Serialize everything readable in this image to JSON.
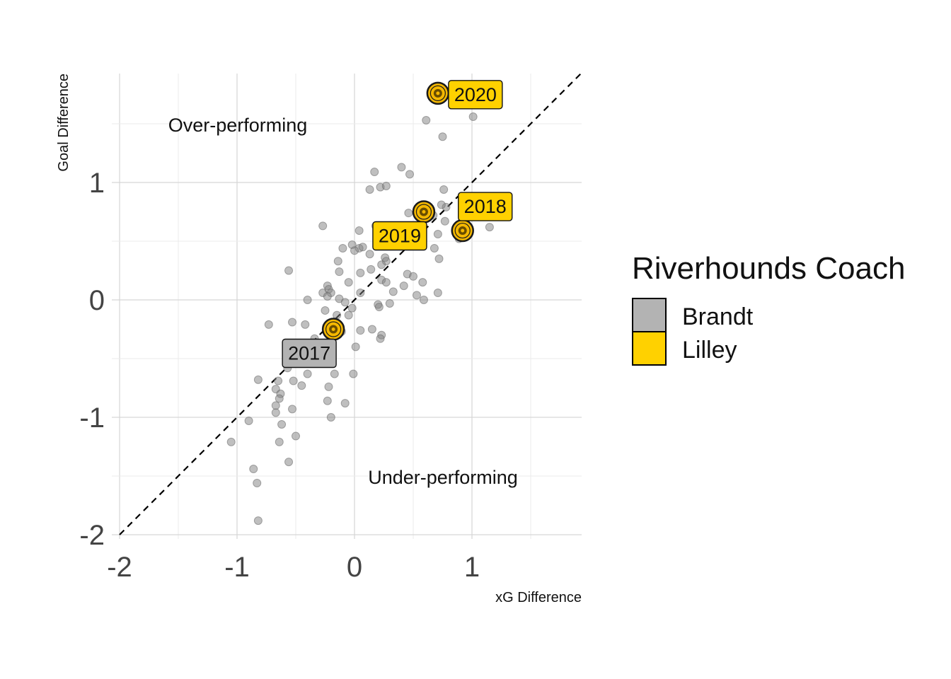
{
  "chart_data": {
    "type": "scatter",
    "xlabel": "xG Difference",
    "ylabel": "Goal Difference",
    "xlim": [
      -2,
      1.9
    ],
    "ylim": [
      -2.05,
      1.95
    ],
    "x_ticks": [
      "-2",
      "-1",
      "0",
      "1"
    ],
    "x_tick_values": [
      -2,
      -1,
      0,
      1
    ],
    "y_ticks": [
      "-2",
      "-1",
      "0",
      "1"
    ],
    "y_tick_values": [
      -2,
      -1,
      0,
      1
    ],
    "grid": true,
    "reference_line": "y = x (dashed)",
    "annotations": {
      "over": "Over-performing",
      "under": "Under-performing"
    },
    "legend": {
      "title": "Riverhounds Coach",
      "placement": "right",
      "entries": [
        {
          "label": "Brandt",
          "color": "#b3b3b3"
        },
        {
          "label": "Lilley",
          "color": "#ffd100"
        }
      ]
    },
    "background_points": [
      [
        0.77,
        1.75
      ],
      [
        1.01,
        1.56
      ],
      [
        0.61,
        1.53
      ],
      [
        0.75,
        1.39
      ],
      [
        0.17,
        1.09
      ],
      [
        0.4,
        1.13
      ],
      [
        0.47,
        1.07
      ],
      [
        0.13,
        0.94
      ],
      [
        0.22,
        0.96
      ],
      [
        0.76,
        0.94
      ],
      [
        0.27,
        0.97
      ],
      [
        0.78,
        0.79
      ],
      [
        0.56,
        0.75
      ],
      [
        0.74,
        0.81
      ],
      [
        0.46,
        0.74
      ],
      [
        0.67,
        0.72
      ],
      [
        1.15,
        0.62
      ],
      [
        0.77,
        0.67
      ],
      [
        0.18,
        0.63
      ],
      [
        -0.27,
        0.63
      ],
      [
        0.04,
        0.59
      ],
      [
        0.21,
        0.59
      ],
      [
        0.71,
        0.56
      ],
      [
        0.89,
        0.52
      ],
      [
        0.2,
        0.53
      ],
      [
        0.27,
        0.53
      ],
      [
        0.42,
        0.5
      ],
      [
        0.47,
        0.48
      ],
      [
        -0.02,
        0.47
      ],
      [
        0.04,
        0.44
      ],
      [
        0.23,
        0.47
      ],
      [
        0.68,
        0.44
      ],
      [
        -0.1,
        0.44
      ],
      [
        0.0,
        0.42
      ],
      [
        0.07,
        0.45
      ],
      [
        0.13,
        0.39
      ],
      [
        0.26,
        0.36
      ],
      [
        0.72,
        0.35
      ],
      [
        -0.14,
        0.33
      ],
      [
        0.27,
        0.33
      ],
      [
        0.23,
        0.3
      ],
      [
        -0.56,
        0.25
      ],
      [
        -0.13,
        0.24
      ],
      [
        0.05,
        0.23
      ],
      [
        0.14,
        0.26
      ],
      [
        0.45,
        0.22
      ],
      [
        0.5,
        0.2
      ],
      [
        0.23,
        0.17
      ],
      [
        0.27,
        0.15
      ],
      [
        -0.05,
        0.15
      ],
      [
        0.42,
        0.12
      ],
      [
        0.58,
        0.15
      ],
      [
        -0.23,
        0.12
      ],
      [
        -0.22,
        0.09
      ],
      [
        0.33,
        0.07
      ],
      [
        0.05,
        0.06
      ],
      [
        -0.27,
        0.06
      ],
      [
        0.71,
        0.06
      ],
      [
        -0.2,
        0.06
      ],
      [
        0.53,
        0.04
      ],
      [
        -0.23,
        0.03
      ],
      [
        -0.13,
        0.01
      ],
      [
        0.59,
        0.0
      ],
      [
        -0.4,
        0.0
      ],
      [
        -0.08,
        -0.02
      ],
      [
        0.2,
        -0.04
      ],
      [
        0.3,
        -0.03
      ],
      [
        -0.25,
        -0.09
      ],
      [
        -0.05,
        -0.13
      ],
      [
        0.21,
        -0.06
      ],
      [
        -0.02,
        -0.07
      ],
      [
        -0.15,
        -0.13
      ],
      [
        -0.53,
        -0.19
      ],
      [
        -0.42,
        -0.21
      ],
      [
        -0.73,
        -0.21
      ],
      [
        0.05,
        -0.26
      ],
      [
        -0.11,
        -0.27
      ],
      [
        0.15,
        -0.25
      ],
      [
        -0.19,
        -0.33
      ],
      [
        0.23,
        -0.3
      ],
      [
        0.22,
        -0.33
      ],
      [
        -0.34,
        -0.33
      ],
      [
        -0.25,
        -0.43
      ],
      [
        0.01,
        -0.4
      ],
      [
        -0.3,
        -0.47
      ],
      [
        -0.31,
        -0.45
      ],
      [
        -0.57,
        -0.58
      ],
      [
        -0.4,
        -0.63
      ],
      [
        -0.17,
        -0.63
      ],
      [
        -0.01,
        -0.63
      ],
      [
        -0.82,
        -0.68
      ],
      [
        -0.52,
        -0.69
      ],
      [
        -0.65,
        -0.69
      ],
      [
        -0.45,
        -0.73
      ],
      [
        -0.22,
        -0.74
      ],
      [
        -0.67,
        -0.76
      ],
      [
        -0.63,
        -0.8
      ],
      [
        -0.64,
        -0.84
      ],
      [
        -0.23,
        -0.86
      ],
      [
        -0.08,
        -0.88
      ],
      [
        -0.67,
        -0.9
      ],
      [
        -0.53,
        -0.93
      ],
      [
        -0.67,
        -0.96
      ],
      [
        -0.2,
        -1.0
      ],
      [
        -0.9,
        -1.03
      ],
      [
        -0.62,
        -1.06
      ],
      [
        -0.5,
        -1.16
      ],
      [
        -1.05,
        -1.21
      ],
      [
        -0.64,
        -1.21
      ],
      [
        -0.56,
        -1.38
      ],
      [
        -0.86,
        -1.44
      ],
      [
        -0.83,
        -1.56
      ],
      [
        -0.82,
        -1.88
      ]
    ],
    "highlighted_seasons": [
      {
        "label": "2017",
        "coach": "Brandt",
        "x": -0.18,
        "y": -0.25
      },
      {
        "label": "2018",
        "coach": "Lilley",
        "x": 0.92,
        "y": 0.59
      },
      {
        "label": "2019",
        "coach": "Lilley",
        "x": 0.59,
        "y": 0.75
      },
      {
        "label": "2020",
        "coach": "Lilley",
        "x": 0.71,
        "y": 1.76
      }
    ]
  }
}
